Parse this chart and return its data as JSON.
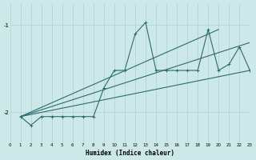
{
  "xlabel": "Humidex (Indice chaleur)",
  "bg_color": "#cde8e8",
  "line_color": "#2d6b6b",
  "grid_color": "#b0d0d0",
  "xlim": [
    0,
    23
  ],
  "ylim": [
    -2.35,
    -0.75
  ],
  "yticks": [
    -2,
    -1
  ],
  "xticks": [
    0,
    1,
    2,
    3,
    4,
    5,
    6,
    7,
    8,
    9,
    10,
    11,
    12,
    13,
    14,
    15,
    16,
    17,
    18,
    19,
    20,
    21,
    22,
    23
  ],
  "line1_x": [
    1,
    2,
    3,
    4,
    5,
    6,
    7,
    8,
    9,
    10,
    11,
    12,
    13,
    14,
    15,
    16,
    17,
    18,
    19,
    20,
    21,
    22,
    23
  ],
  "line1_y": [
    -2.05,
    -2.15,
    -2.05,
    -2.05,
    -2.05,
    -2.05,
    -2.05,
    -2.05,
    -1.72,
    -1.52,
    -1.52,
    -1.1,
    -0.97,
    -1.52,
    -1.52,
    -1.52,
    -1.52,
    -1.52,
    -1.05,
    -1.52,
    -1.45,
    -1.25,
    -1.52
  ],
  "line2_x": [
    1,
    23
  ],
  "line2_y": [
    -2.05,
    -1.52
  ],
  "line3_x": [
    1,
    23
  ],
  "line3_y": [
    -2.05,
    -1.2
  ],
  "line4_x": [
    1,
    20
  ],
  "line4_y": [
    -2.05,
    -1.05
  ],
  "marker": "+"
}
